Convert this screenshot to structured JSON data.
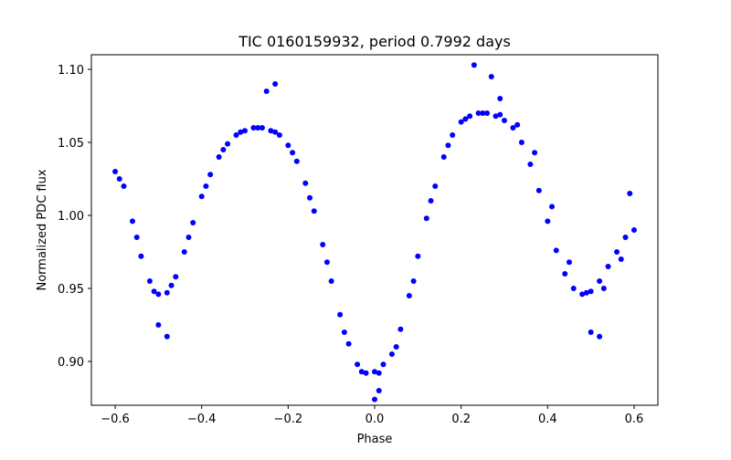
{
  "chart_data": {
    "type": "scatter",
    "title": "TIC 0160159932, period 0.7992 days",
    "xlabel": "Phase",
    "ylabel": "Normalized PDC flux",
    "xlim": [
      -0.655,
      0.655
    ],
    "ylim": [
      0.87,
      1.11
    ],
    "xticks": [
      -0.6,
      -0.4,
      -0.2,
      0.0,
      0.2,
      0.4,
      0.6
    ],
    "xtick_labels": [
      "−0.6",
      "−0.4",
      "−0.2",
      "0.0",
      "0.2",
      "0.4",
      "0.6"
    ],
    "yticks": [
      0.9,
      0.95,
      1.0,
      1.05,
      1.1
    ],
    "ytick_labels": [
      "0.90",
      "0.95",
      "1.00",
      "1.05",
      "1.10"
    ],
    "grid": false,
    "series": [
      {
        "color": "#0000ff",
        "marker": "circle",
        "x": [
          -0.6,
          -0.58,
          -0.56,
          -0.54,
          -0.52,
          -0.5,
          -0.48,
          -0.46,
          -0.44,
          -0.42,
          -0.4,
          -0.38,
          -0.36,
          -0.34,
          -0.32,
          -0.3,
          -0.28,
          -0.26,
          -0.24,
          -0.22,
          -0.2,
          -0.18,
          -0.16,
          -0.14,
          -0.12,
          -0.1,
          -0.08,
          -0.06,
          -0.04,
          -0.02,
          0.0,
          0.02,
          0.04,
          0.06,
          0.08,
          0.1,
          0.12,
          0.14,
          0.16,
          0.18,
          0.2,
          0.22,
          0.24,
          0.26,
          0.28,
          0.3,
          0.32,
          0.34,
          0.36,
          0.38,
          0.4,
          0.42,
          0.44,
          0.46,
          0.48,
          0.5,
          0.52,
          0.54,
          0.56,
          0.58,
          0.6,
          -0.59,
          -0.55,
          -0.51,
          -0.47,
          -0.43,
          -0.39,
          -0.35,
          -0.31,
          -0.27,
          -0.23,
          -0.19,
          -0.15,
          -0.11,
          -0.07,
          -0.03,
          0.01,
          0.05,
          0.09,
          0.13,
          0.17,
          0.21,
          0.25,
          0.29,
          0.33,
          0.37,
          0.41,
          0.45,
          0.49,
          0.53,
          0.57,
          -0.5,
          -0.48,
          -0.25,
          -0.23,
          0.0,
          0.01,
          0.23,
          0.27,
          0.29,
          0.5,
          0.52,
          0.59
        ],
        "y": [
          1.03,
          1.02,
          0.996,
          0.972,
          0.955,
          0.946,
          0.947,
          0.958,
          0.975,
          0.995,
          1.013,
          1.028,
          1.04,
          1.049,
          1.055,
          1.058,
          1.06,
          1.06,
          1.058,
          1.055,
          1.048,
          1.037,
          1.022,
          1.003,
          0.98,
          0.955,
          0.932,
          0.912,
          0.898,
          0.892,
          0.893,
          0.898,
          0.905,
          0.922,
          0.945,
          0.972,
          0.998,
          1.02,
          1.04,
          1.055,
          1.064,
          1.068,
          1.07,
          1.07,
          1.068,
          1.065,
          1.06,
          1.05,
          1.035,
          1.017,
          0.996,
          0.976,
          0.96,
          0.95,
          0.946,
          0.948,
          0.955,
          0.965,
          0.975,
          0.985,
          0.99,
          1.025,
          0.985,
          0.948,
          0.952,
          0.985,
          1.02,
          1.045,
          1.057,
          1.06,
          1.057,
          1.043,
          1.012,
          0.968,
          0.92,
          0.893,
          0.892,
          0.91,
          0.955,
          1.01,
          1.048,
          1.066,
          1.07,
          1.069,
          1.062,
          1.043,
          1.006,
          0.968,
          0.947,
          0.95,
          0.97,
          0.925,
          0.917,
          1.085,
          1.09,
          0.874,
          0.88,
          1.103,
          1.095,
          1.08,
          0.92,
          0.917,
          1.015
        ]
      }
    ]
  }
}
